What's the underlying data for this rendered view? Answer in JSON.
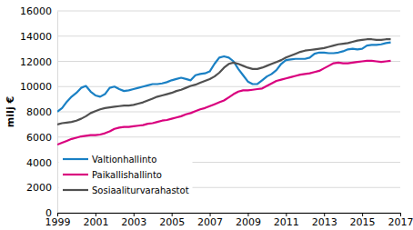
{
  "chart_data": {
    "type": "line",
    "y_label": "milj €",
    "x": [
      1999,
      1999.25,
      1999.5,
      1999.75,
      2000,
      2000.25,
      2000.5,
      2000.75,
      2001,
      2001.25,
      2001.5,
      2001.75,
      2002,
      2002.25,
      2002.5,
      2002.75,
      2003,
      2003.25,
      2003.5,
      2003.75,
      2004,
      2004.25,
      2004.5,
      2004.75,
      2005,
      2005.25,
      2005.5,
      2005.75,
      2006,
      2006.25,
      2006.5,
      2006.75,
      2007,
      2007.25,
      2007.5,
      2007.75,
      2008,
      2008.25,
      2008.5,
      2008.75,
      2009,
      2009.25,
      2009.5,
      2009.75,
      2010,
      2010.25,
      2010.5,
      2010.75,
      2011,
      2011.25,
      2011.5,
      2011.75,
      2012,
      2012.25,
      2012.5,
      2012.75,
      2013,
      2013.25,
      2013.5,
      2013.75,
      2014,
      2014.25,
      2014.5,
      2014.75,
      2015,
      2015.25,
      2015.5,
      2015.75,
      2016,
      2016.25,
      2016.5
    ],
    "series": [
      {
        "name": "Valtionhallinto",
        "color": "#1a80c4",
        "values": [
          8000,
          8300,
          8800,
          9200,
          9500,
          9900,
          10050,
          9600,
          9300,
          9200,
          9400,
          9900,
          10000,
          9800,
          9650,
          9700,
          9800,
          9900,
          10000,
          10100,
          10200,
          10200,
          10250,
          10350,
          10500,
          10600,
          10700,
          10600,
          10500,
          10900,
          11000,
          11050,
          11200,
          11800,
          12300,
          12400,
          12300,
          12000,
          11400,
          10900,
          10400,
          10200,
          10200,
          10500,
          10800,
          11000,
          11300,
          11800,
          12100,
          12150,
          12200,
          12200,
          12200,
          12300,
          12600,
          12700,
          12700,
          12650,
          12650,
          12700,
          12800,
          12950,
          13000,
          12950,
          13000,
          13250,
          13300,
          13300,
          13350,
          13450,
          13500
        ]
      },
      {
        "name": "Paikallishallinto",
        "color": "#d9007e",
        "values": [
          5400,
          5550,
          5700,
          5850,
          5950,
          6050,
          6100,
          6150,
          6150,
          6200,
          6300,
          6450,
          6650,
          6750,
          6800,
          6800,
          6850,
          6900,
          6950,
          7050,
          7100,
          7200,
          7300,
          7350,
          7450,
          7550,
          7650,
          7800,
          7900,
          8050,
          8200,
          8300,
          8450,
          8600,
          8750,
          8900,
          9150,
          9400,
          9600,
          9700,
          9700,
          9750,
          9800,
          9850,
          10050,
          10250,
          10450,
          10550,
          10650,
          10750,
          10850,
          10950,
          11000,
          11050,
          11150,
          11250,
          11450,
          11650,
          11850,
          11900,
          11850,
          11850,
          11900,
          11950,
          12000,
          12050,
          12050,
          12000,
          11950,
          12000,
          12050
        ]
      },
      {
        "name": "Sosiaaliturvarahastot",
        "color": "#505050",
        "values": [
          7000,
          7100,
          7150,
          7200,
          7300,
          7450,
          7650,
          7900,
          8050,
          8200,
          8300,
          8350,
          8400,
          8450,
          8500,
          8500,
          8550,
          8650,
          8750,
          8900,
          9050,
          9200,
          9300,
          9400,
          9500,
          9650,
          9750,
          9900,
          10050,
          10150,
          10300,
          10450,
          10600,
          10800,
          11100,
          11500,
          11800,
          11900,
          11800,
          11650,
          11500,
          11400,
          11400,
          11500,
          11650,
          11800,
          11950,
          12100,
          12300,
          12450,
          12600,
          12750,
          12850,
          12900,
          12950,
          13000,
          13050,
          13150,
          13250,
          13350,
          13400,
          13450,
          13550,
          13650,
          13700,
          13750,
          13750,
          13700,
          13700,
          13750,
          13750
        ]
      }
    ],
    "xlim": [
      1999,
      2017
    ],
    "xticks": [
      1999,
      2001,
      2003,
      2005,
      2007,
      2009,
      2011,
      2013,
      2015,
      2017
    ],
    "ylim": [
      0,
      16000
    ],
    "yticks": [
      0,
      2000,
      4000,
      6000,
      8000,
      10000,
      12000,
      14000,
      16000
    ],
    "grid": true,
    "legend": "lower left"
  }
}
